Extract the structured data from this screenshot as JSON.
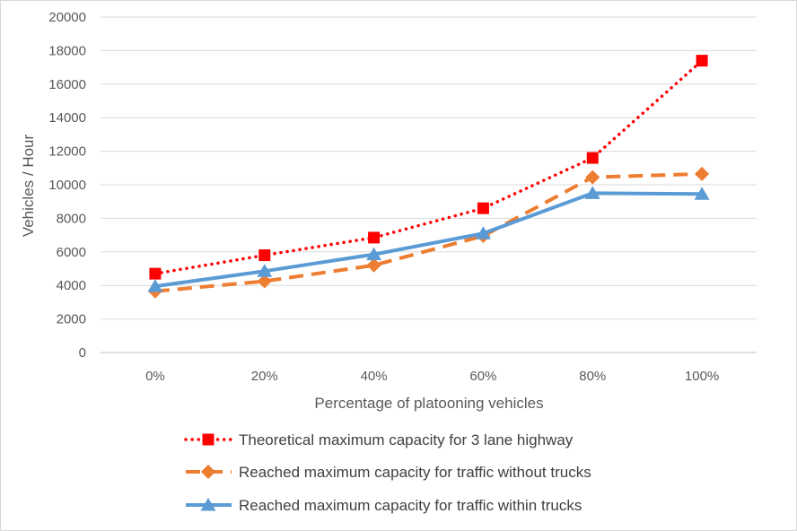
{
  "chart_data": {
    "type": "line",
    "title": "",
    "xlabel": "Percentage of platooning vehicles",
    "ylabel": "Vehicles / Hour",
    "categories": [
      "0%",
      "20%",
      "40%",
      "60%",
      "80%",
      "100%"
    ],
    "ylim": [
      0,
      20000
    ],
    "yticks": [
      "0",
      "2000",
      "4000",
      "6000",
      "8000",
      "10000",
      "12000",
      "14000",
      "16000",
      "18000",
      "20000"
    ],
    "grid": "horizontal",
    "legend_position": "bottom",
    "series": [
      {
        "name": "Theoretical maximum capacity for 3 lane highway",
        "values": [
          4700,
          5800,
          6850,
          8600,
          11600,
          17400
        ],
        "color": "#ff0000",
        "marker": "square",
        "line_style": "dotted"
      },
      {
        "name": "Reached maximum capacity for traffic without trucks",
        "values": [
          3650,
          4250,
          5200,
          6950,
          10450,
          10650
        ],
        "color": "#ed7d31",
        "marker": "diamond",
        "line_style": "dashed"
      },
      {
        "name": "Reached maximum capacity for traffic within trucks",
        "values": [
          3950,
          4850,
          5850,
          7100,
          9500,
          9450
        ],
        "color": "#5b9bd5",
        "marker": "triangle",
        "line_style": "solid"
      }
    ]
  }
}
